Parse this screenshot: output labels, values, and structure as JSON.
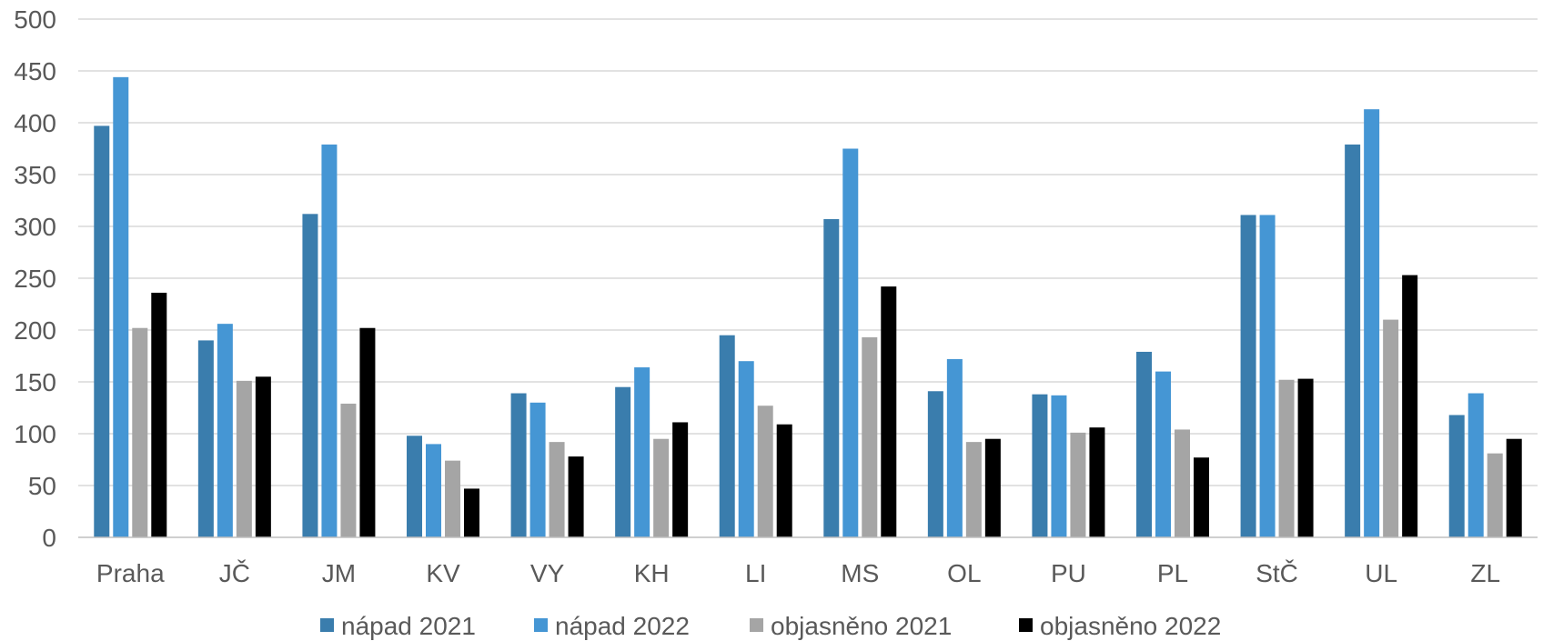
{
  "chart_data": {
    "type": "bar",
    "title": "",
    "xlabel": "",
    "ylabel": "",
    "ylim": [
      0,
      500
    ],
    "yticks": [
      0,
      50,
      100,
      150,
      200,
      250,
      300,
      350,
      400,
      450,
      500
    ],
    "grid": true,
    "legend_position": "bottom",
    "categories": [
      "Praha",
      "JČ",
      "JM",
      "KV",
      "VY",
      "KH",
      "LI",
      "MS",
      "OL",
      "PU",
      "PL",
      "StČ",
      "UL",
      "ZL"
    ],
    "series": [
      {
        "name": "nápad 2021",
        "color": "#3a7dad",
        "values": [
          397,
          190,
          312,
          98,
          139,
          145,
          195,
          307,
          141,
          138,
          179,
          311,
          379,
          118
        ]
      },
      {
        "name": "nápad 2022",
        "color": "#4596d4",
        "values": [
          444,
          206,
          379,
          90,
          130,
          164,
          170,
          375,
          172,
          137,
          160,
          311,
          413,
          139
        ]
      },
      {
        "name": "objasněno 2021",
        "color": "#a5a5a5",
        "values": [
          202,
          151,
          129,
          74,
          92,
          95,
          127,
          193,
          92,
          101,
          104,
          152,
          210,
          81
        ]
      },
      {
        "name": "objasněno 2022",
        "color": "#000000",
        "values": [
          236,
          155,
          202,
          47,
          78,
          111,
          109,
          242,
          95,
          106,
          77,
          153,
          253,
          95
        ]
      }
    ]
  }
}
